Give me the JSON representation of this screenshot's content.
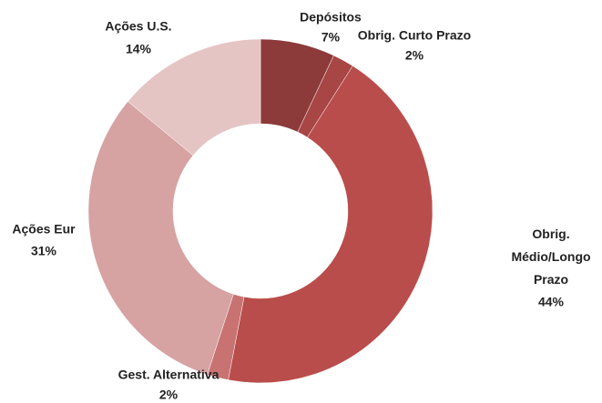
{
  "chart_data": {
    "type": "donut",
    "categories": [
      "Depósitos",
      "Obrig. Curto Prazo",
      "Obrig. Médio/Longo Prazo",
      "Gest. Alternativa",
      "Ações Eur",
      "Ações U.S."
    ],
    "values": [
      7,
      2,
      44,
      2,
      31,
      14
    ],
    "value_labels": [
      "7%",
      "2%",
      "44%",
      "2%",
      "31%",
      "14%"
    ],
    "colors": [
      "#8c3a3a",
      "#a84545",
      "#b94d4b",
      "#c97272",
      "#d6a2a2",
      "#e5c4c4"
    ]
  }
}
